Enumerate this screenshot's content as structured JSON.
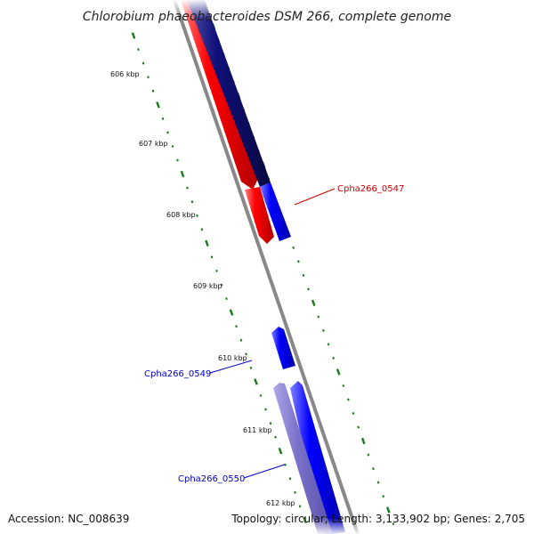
{
  "title": "Chlorobium phaeobacteroides DSM 266, complete genome",
  "footer": {
    "accession": "Accession: NC_008639",
    "summary": "Topology: circular; Length: 3,133,902 bp; Genes: 2,705"
  },
  "ticks": [
    {
      "label": "606 kbp"
    },
    {
      "label": "607 kbp"
    },
    {
      "label": "608 kbp"
    },
    {
      "label": "609 kbp"
    },
    {
      "label": "610 kbp"
    },
    {
      "label": "611 kbp"
    },
    {
      "label": "612 kbp"
    }
  ],
  "gene_labels": [
    {
      "name": "Cpha266_0547",
      "color": "#cc0000"
    },
    {
      "name": "Cpha266_0549",
      "color": "#0000cc"
    },
    {
      "name": "Cpha266_0550",
      "color": "#0000cc"
    }
  ],
  "colors": {
    "backbone": "#888888",
    "tick_marks": "#1a7a1a",
    "red_gene": "#ff0000",
    "navy_gene": "#10107a",
    "blue_gene": "#0000ff",
    "lavender_gene": "#7b72cc"
  }
}
